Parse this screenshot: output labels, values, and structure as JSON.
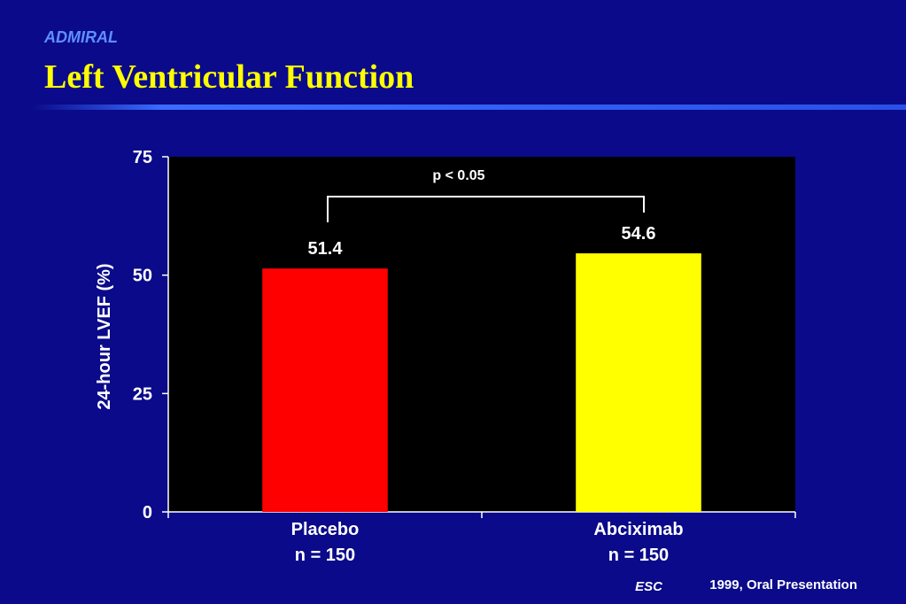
{
  "chart_data": {
    "type": "bar",
    "subtitle": "ADMIRAL",
    "title": "Left Ventricular Function",
    "y_label": "24-hour LVEF (%)",
    "categories": [
      [
        "Placebo",
        "n = 150"
      ],
      [
        "Abciximab",
        "n = 150"
      ]
    ],
    "values": [
      51.4,
      54.6
    ],
    "colors": [
      "#ff0000",
      "#ffff00"
    ],
    "ylim": [
      0,
      75
    ],
    "yticks": [
      0,
      25,
      50,
      75
    ],
    "annotation": "p < 0.05",
    "footer": {
      "source": "ESC",
      "note": "1999, Oral Presentation"
    }
  }
}
